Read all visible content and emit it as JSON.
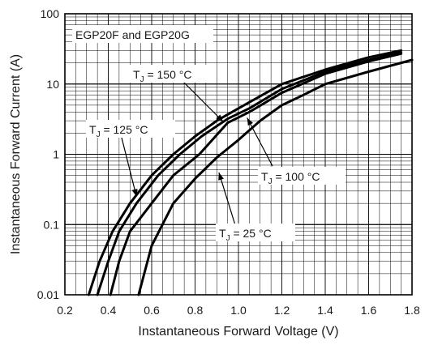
{
  "chart_data": {
    "type": "line",
    "title": "",
    "xlabel": "Instantaneous Forward Voltage (V)",
    "ylabel": "Instantaneous Forward Current (A)",
    "xlim": [
      0.2,
      1.8
    ],
    "ylim": [
      0.01,
      100
    ],
    "yscale": "log",
    "grid": true,
    "x_ticks": [
      "0.2",
      "0.4",
      "0.6",
      "0.8",
      "1.0",
      "1.2",
      "1.4",
      "1.6",
      "1.8"
    ],
    "y_ticks": [
      "0.01",
      "0.1",
      "1",
      "10",
      "100"
    ],
    "annotation_box": "EGP20F and EGP20G",
    "series": [
      {
        "label_main": "T",
        "label_sub": "J",
        "label_rest": " = 150 °C",
        "x": [
          0.31,
          0.36,
          0.42,
          0.5,
          0.6,
          0.7,
          0.8,
          0.9,
          1.0,
          1.2,
          1.4,
          1.6,
          1.75
        ],
        "y": [
          0.01,
          0.03,
          0.08,
          0.2,
          0.5,
          1.0,
          1.8,
          3.0,
          4.5,
          10,
          16,
          24,
          30
        ]
      },
      {
        "label_main": "T",
        "label_sub": "J",
        "label_rest": " = 125 °C",
        "x": [
          0.35,
          0.4,
          0.45,
          0.53,
          0.63,
          0.73,
          0.83,
          0.95,
          1.05,
          1.2,
          1.4,
          1.6,
          1.75
        ],
        "y": [
          0.01,
          0.03,
          0.08,
          0.2,
          0.5,
          1.0,
          1.8,
          3.2,
          4.5,
          8.5,
          15,
          22,
          28
        ]
      },
      {
        "label_main": "T",
        "label_sub": "J",
        "label_rest": " = 100 °C",
        "x": [
          0.41,
          0.45,
          0.5,
          0.6,
          0.7,
          0.82,
          0.95,
          1.05,
          1.2,
          1.4,
          1.6,
          1.75
        ],
        "y": [
          0.01,
          0.03,
          0.08,
          0.2,
          0.5,
          1.0,
          2.8,
          4.0,
          7.5,
          14,
          21,
          27
        ]
      },
      {
        "label_main": "T",
        "label_sub": "J",
        "label_rest": " = 25 °C",
        "x": [
          0.54,
          0.6,
          0.7,
          0.8,
          0.9,
          1.0,
          1.1,
          1.2,
          1.3,
          1.4,
          1.6,
          1.8
        ],
        "y": [
          0.01,
          0.05,
          0.2,
          0.45,
          0.9,
          1.6,
          3.0,
          5.0,
          7.0,
          10,
          15,
          22
        ]
      }
    ]
  }
}
